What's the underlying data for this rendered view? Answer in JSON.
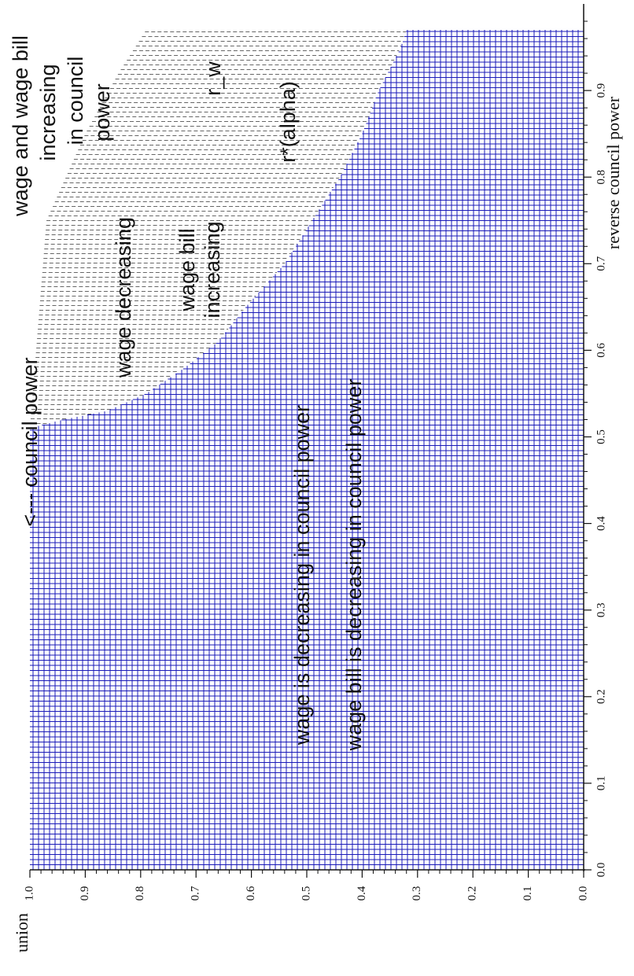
{
  "chart_data": {
    "type": "region",
    "orientation": "rotated-90-clockwise",
    "x_axis": {
      "label": "reverse council power",
      "range": [
        0.0,
        1.0
      ],
      "ticks": [
        "0.0",
        "0.1",
        "0.2",
        "0.3",
        "0.4",
        "0.5",
        "0.6",
        "0.7",
        "0.8",
        "0.9"
      ]
    },
    "y_axis": {
      "label": "union",
      "range": [
        0.0,
        1.0
      ],
      "ticks": [
        "0.0",
        "0.1",
        "0.2",
        "0.3",
        "0.4",
        "0.5",
        "0.6",
        "0.7",
        "0.8",
        "0.9",
        "1.0"
      ]
    },
    "series": [
      {
        "name": "r*(alpha)",
        "fill": "blue-grid",
        "color": "#1a1ab8",
        "boundary": [
          {
            "x": 0.0,
            "y": 1.0
          },
          {
            "x": 0.51,
            "y": 1.0
          },
          {
            "x": 0.52,
            "y": 0.94
          },
          {
            "x": 0.53,
            "y": 0.86
          },
          {
            "x": 0.55,
            "y": 0.79
          },
          {
            "x": 0.58,
            "y": 0.72
          },
          {
            "x": 0.61,
            "y": 0.66
          },
          {
            "x": 0.65,
            "y": 0.61
          },
          {
            "x": 0.7,
            "y": 0.54
          },
          {
            "x": 0.75,
            "y": 0.49
          },
          {
            "x": 0.8,
            "y": 0.44
          },
          {
            "x": 0.85,
            "y": 0.4
          },
          {
            "x": 0.9,
            "y": 0.37
          },
          {
            "x": 0.95,
            "y": 0.33
          },
          {
            "x": 0.97,
            "y": 0.32
          }
        ]
      },
      {
        "name": "r_w",
        "fill": "gray-dash",
        "color": "#666666",
        "boundary": [
          {
            "x": 0.51,
            "y": 1.0
          },
          {
            "x": 0.75,
            "y": 0.97
          },
          {
            "x": 0.85,
            "y": 0.9
          },
          {
            "x": 0.92,
            "y": 0.84
          },
          {
            "x": 0.97,
            "y": 0.79
          }
        ]
      }
    ],
    "annotations": [
      {
        "text": "<--- council power"
      },
      {
        "text": "wage decreasing"
      },
      {
        "text": "wage bill"
      },
      {
        "text": "increasing"
      },
      {
        "text": "wage and wage bill"
      },
      {
        "text": "increasing"
      },
      {
        "text": "in council"
      },
      {
        "text": "power"
      },
      {
        "text": "r_w"
      },
      {
        "text": "r*(alpha)"
      },
      {
        "text": "wage is decreasing in council power"
      },
      {
        "text": "wage bill is decreasing in council power"
      }
    ]
  }
}
